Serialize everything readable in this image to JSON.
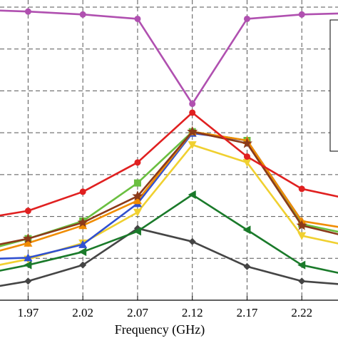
{
  "chart_data": {
    "type": "line",
    "title": "",
    "xlabel": "Frequency (GHz)",
    "ylabel": "",
    "x": [
      1.97,
      2.02,
      2.07,
      2.12,
      2.17,
      2.22
    ],
    "x_tick_labels": [
      "1.97",
      "2.02",
      "2.07",
      "2.12",
      "2.17",
      "2.22"
    ],
    "xlim": [
      1.93,
      2.27
    ],
    "ylim": [
      0,
      1
    ],
    "grid": true,
    "legend": "right (partially visible, labels not readable)",
    "series": [
      {
        "color": "#b050b0",
        "marker": "circle",
        "x": [
          1.93,
          1.97,
          2.02,
          2.07,
          2.12,
          2.17,
          2.22,
          2.27
        ],
        "values": [
          0.99,
          0.985,
          0.975,
          0.96,
          0.67,
          0.96,
          0.975,
          0.98
        ]
      },
      {
        "color": "#e02020",
        "marker": "circle",
        "x": [
          1.93,
          1.97,
          2.02,
          2.07,
          2.12,
          2.17,
          2.22,
          2.27
        ],
        "values": [
          0.28,
          0.305,
          0.37,
          0.47,
          0.64,
          0.49,
          0.38,
          0.34
        ]
      },
      {
        "color": "#8b3a1a",
        "marker": "star",
        "x": [
          1.93,
          1.97,
          2.02,
          2.07,
          2.12,
          2.17,
          2.22,
          2.27
        ],
        "values": [
          0.18,
          0.21,
          0.265,
          0.355,
          0.575,
          0.535,
          0.255,
          0.21
        ]
      },
      {
        "color": "#f08c00",
        "marker": "triangle-up",
        "x": [
          1.93,
          1.97,
          2.02,
          2.07,
          2.12,
          2.17,
          2.22,
          2.27
        ],
        "values": [
          0.155,
          0.195,
          0.255,
          0.34,
          0.575,
          0.545,
          0.27,
          0.24
        ]
      },
      {
        "color": "#3050d0",
        "marker": "triangle-up",
        "x": [
          1.93,
          1.97,
          2.02,
          2.07,
          2.12,
          2.17,
          2.22
        ],
        "values": [
          0.14,
          0.145,
          0.19,
          0.33,
          0.57,
          0.545,
          0.27
        ]
      },
      {
        "color": "#6abf40",
        "marker": "square",
        "x": [
          1.93,
          1.97,
          2.02,
          2.07,
          2.12,
          2.17,
          2.22,
          2.27
        ],
        "values": [
          0.17,
          0.21,
          0.27,
          0.4,
          0.575,
          0.545,
          0.26,
          0.22
        ]
      },
      {
        "color": "#f0d030",
        "marker": "triangle-down",
        "x": [
          1.93,
          1.97,
          2.02,
          2.07,
          2.12,
          2.17,
          2.22,
          2.27
        ],
        "values": [
          0.11,
          0.14,
          0.195,
          0.3,
          0.53,
          0.47,
          0.22,
          0.18
        ]
      },
      {
        "color": "#1a7a2a",
        "marker": "triangle-left",
        "x": [
          1.93,
          1.97,
          2.02,
          2.07,
          2.12,
          2.17,
          2.22,
          2.27
        ],
        "values": [
          0.09,
          0.12,
          0.165,
          0.235,
          0.36,
          0.24,
          0.12,
          0.08
        ]
      },
      {
        "color": "#454545",
        "marker": "diamond",
        "x": [
          1.93,
          1.97,
          2.02,
          2.07,
          2.12,
          2.17,
          2.22,
          2.27
        ],
        "values": [
          0.04,
          0.065,
          0.12,
          0.245,
          0.2,
          0.115,
          0.065,
          0.05
        ]
      }
    ]
  }
}
